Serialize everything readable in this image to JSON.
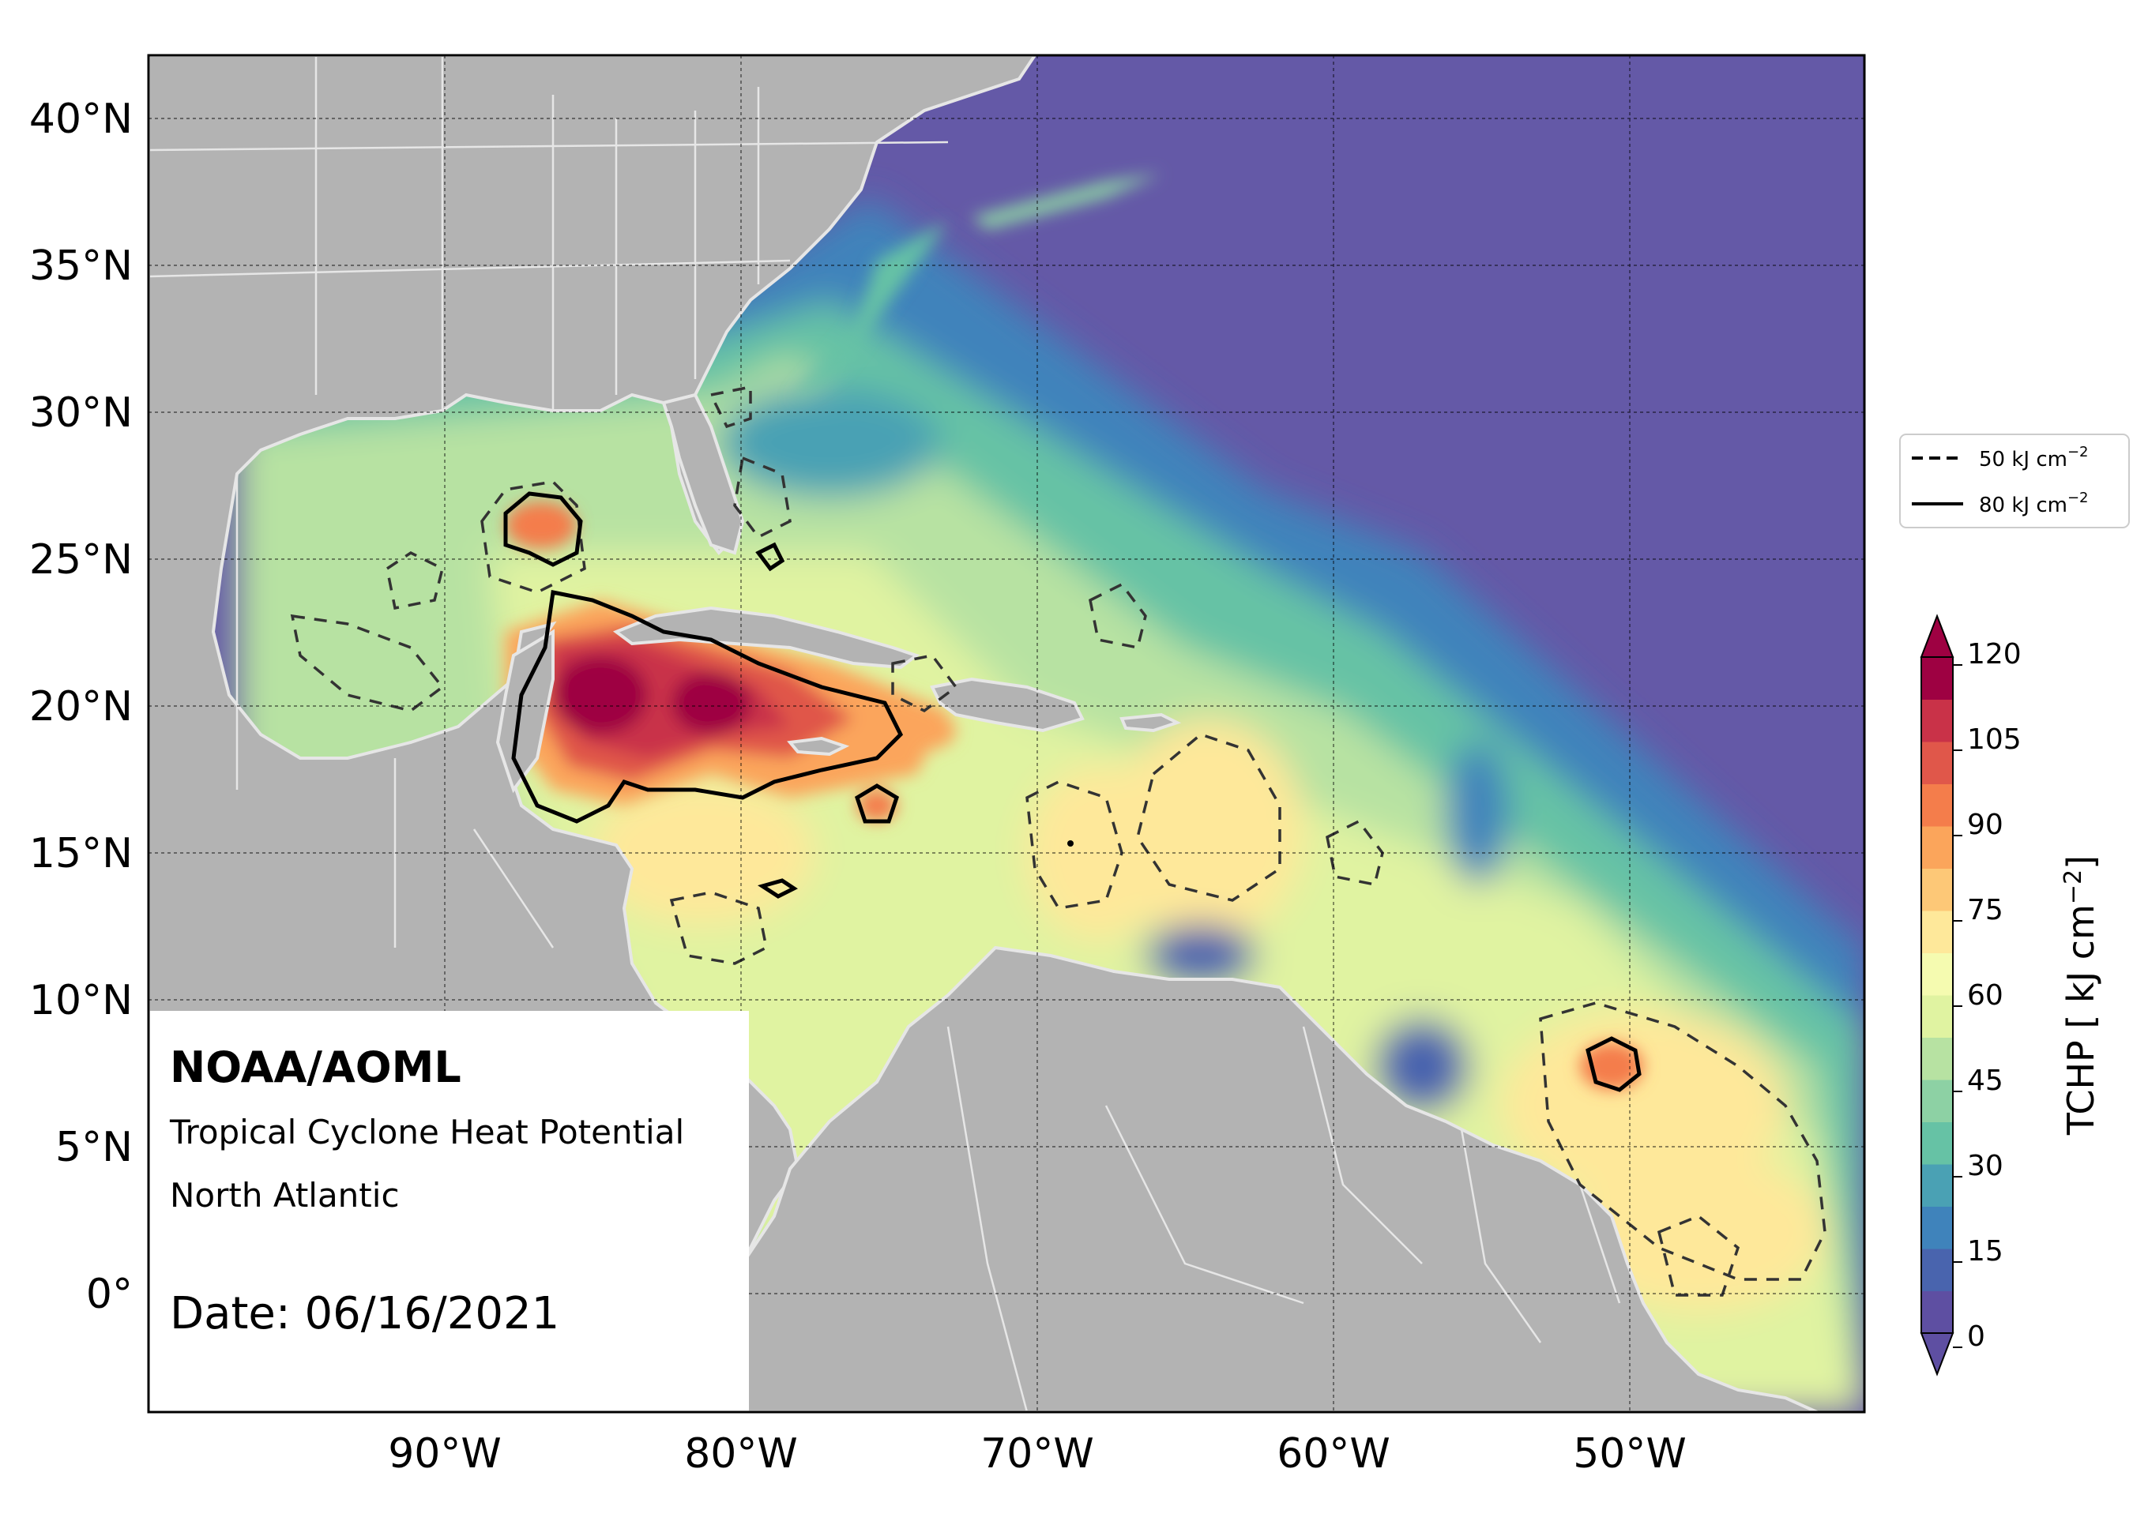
{
  "map": {
    "x_ticks": [
      "90°W",
      "80°W",
      "70°W",
      "60°W",
      "50°W"
    ],
    "y_ticks": [
      "40°N",
      "35°N",
      "30°N",
      "25°N",
      "20°N",
      "15°N",
      "10°N",
      "5°N",
      "0°"
    ],
    "land_color": "#b3b3b3",
    "border_color": "#ffffff"
  },
  "legend": {
    "items": [
      {
        "label": "50 kJ cm",
        "sup": "−2",
        "style": "dashed"
      },
      {
        "label": "80 kJ cm",
        "sup": "−2",
        "style": "solid"
      }
    ]
  },
  "colorbar": {
    "ticks": [
      "120",
      "105",
      "90",
      "75",
      "60",
      "45",
      "30",
      "15",
      "0"
    ],
    "title": "TCHP [ kJ cm",
    "title_sup": "−2",
    "title_end": "]",
    "colors": [
      "#5e4fa2",
      "#4964ae",
      "#3f83bb",
      "#4aa1b4",
      "#66c2a5",
      "#8dd1a4",
      "#b7e2a2",
      "#e0f3a1",
      "#f5fbb0",
      "#fee89a",
      "#fdc877",
      "#fba55b",
      "#f47d4b",
      "#e0574a",
      "#c93248",
      "#9e0142"
    ]
  },
  "info": {
    "org": "NOAA/AOML",
    "product": "Tropical Cyclone Heat Potential",
    "region": "North Atlantic",
    "date": "Date: 06/16/2021"
  }
}
